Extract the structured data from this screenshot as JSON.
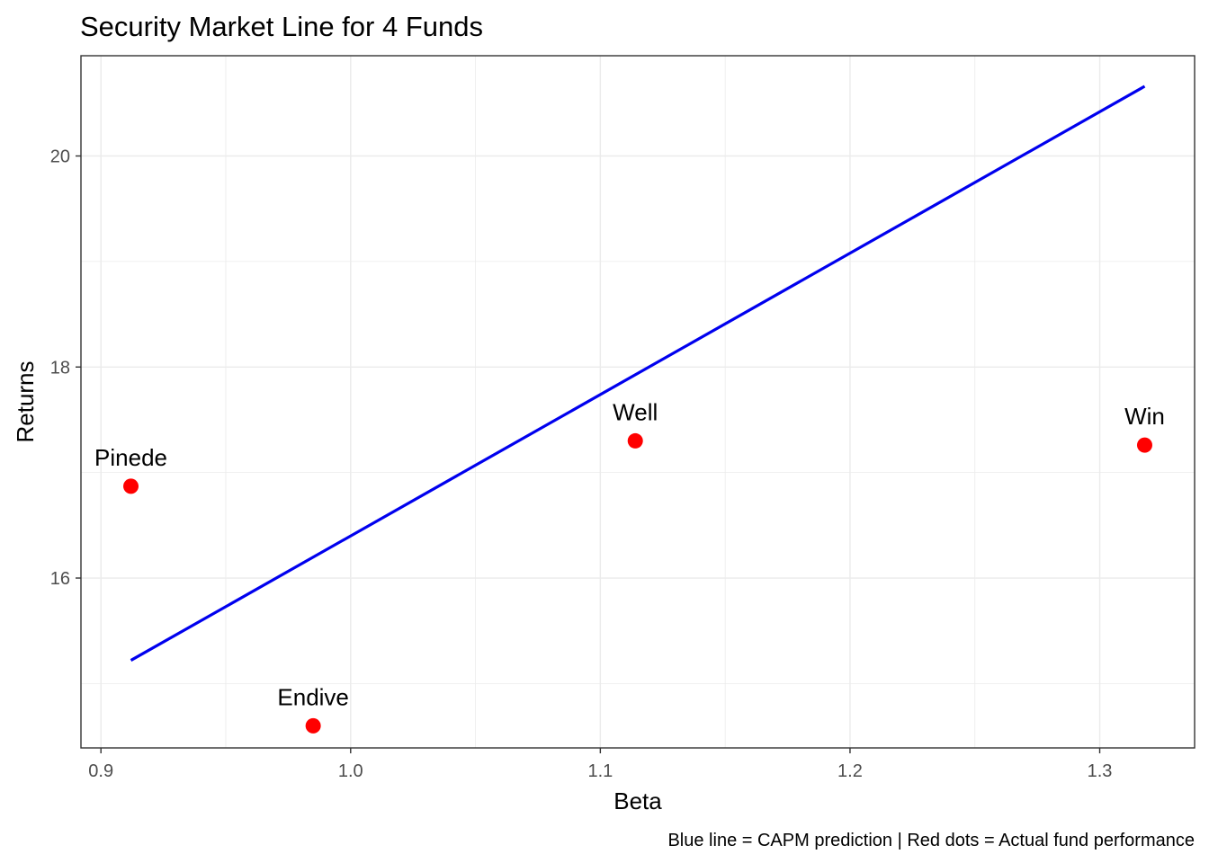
{
  "chart_data": {
    "type": "scatter",
    "title": "Security Market Line for 4 Funds",
    "xlabel": "Beta",
    "ylabel": "Returns",
    "caption": "Blue line = CAPM prediction | Red dots = Actual fund performance",
    "xlim": [
      0.892,
      1.338
    ],
    "ylim": [
      14.39,
      20.95
    ],
    "x_ticks": [
      0.9,
      1.0,
      1.1,
      1.2,
      1.3
    ],
    "x_tick_labels": [
      "0.9",
      "1.0",
      "1.1",
      "1.2",
      "1.3"
    ],
    "y_ticks": [
      16,
      18,
      20
    ],
    "y_tick_labels": [
      "16",
      "18",
      "20"
    ],
    "grid": true,
    "legend": "none",
    "points": [
      {
        "label": "Pinede",
        "x": 0.912,
        "y": 16.87
      },
      {
        "label": "Endive",
        "x": 0.985,
        "y": 14.6
      },
      {
        "label": "Well",
        "x": 1.114,
        "y": 17.3
      },
      {
        "label": "Win",
        "x": 1.318,
        "y": 17.26
      }
    ],
    "line": {
      "x": [
        0.912,
        1.318
      ],
      "y": [
        15.22,
        20.66
      ]
    },
    "colors": {
      "points": "#ff0000",
      "line": "#0000ee",
      "grid": "#ebebeb",
      "axis": "#333333"
    }
  }
}
